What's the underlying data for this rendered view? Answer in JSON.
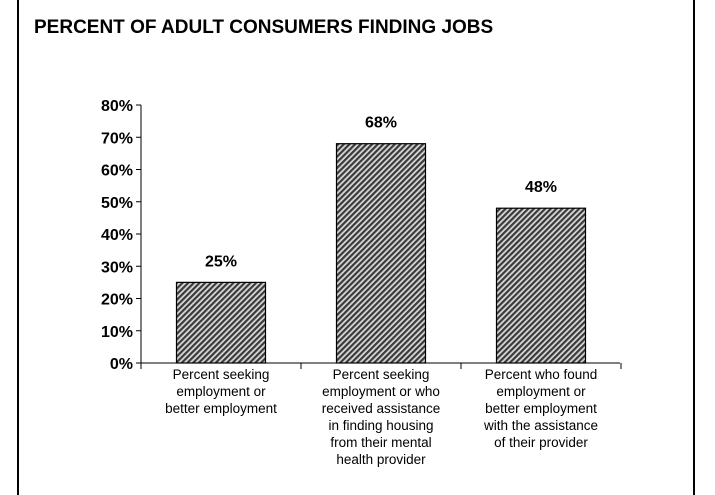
{
  "title": "PERCENT OF ADULT CONSUMERS FINDING JOBS",
  "colors": {
    "bar_fill_dark": "#3a3a3a",
    "bar_fill_light": "#d8d8d8",
    "axis": "#000000"
  },
  "chart_data": {
    "type": "bar",
    "title": "PERCENT OF ADULT CONSUMERS FINDING JOBS",
    "xlabel": "",
    "ylabel": "",
    "ylim": [
      0,
      80
    ],
    "yticks": [
      "0%",
      "10%",
      "20%",
      "30%",
      "40%",
      "50%",
      "60%",
      "70%",
      "80%"
    ],
    "categories": [
      [
        "Percent seeking",
        "employment or",
        "better employment"
      ],
      [
        "Percent seeking",
        "employment or who",
        "received assistance",
        "in finding housing",
        "from their mental",
        "health provider"
      ],
      [
        "Percent who found",
        "employment or",
        "better employment",
        "with the assistance",
        "of their provider"
      ]
    ],
    "values": [
      25,
      68,
      48
    ],
    "data_labels": [
      "25%",
      "68%",
      "48%"
    ],
    "grid": false,
    "legend": "none"
  }
}
